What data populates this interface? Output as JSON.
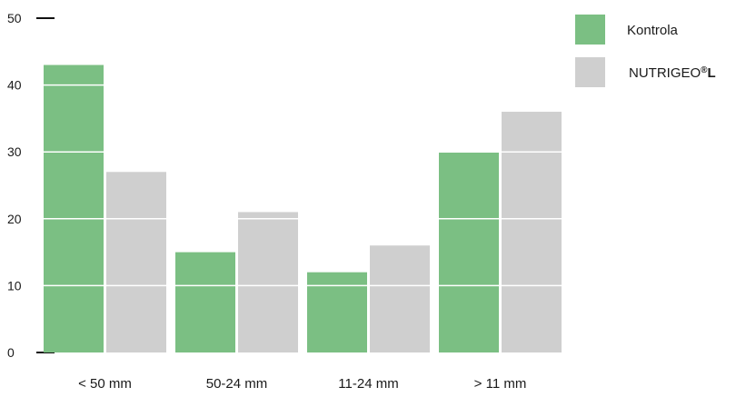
{
  "chart_data": {
    "type": "bar",
    "categories": [
      "< 50 mm",
      "50-24 mm",
      "11-24 mm",
      "> 11 mm"
    ],
    "series": [
      {
        "name": "Kontrola",
        "values": [
          43,
          15,
          12,
          30
        ],
        "color": "#7bbf83"
      },
      {
        "name": "NUTRIGEO®L",
        "values": [
          27,
          21,
          16,
          36
        ],
        "color": "#cfcfcf"
      }
    ],
    "yticks": [
      0,
      10,
      20,
      30,
      40,
      50
    ],
    "ylim": [
      0,
      50
    ],
    "grid": true,
    "grid_color": "#ffffff",
    "legend_position": "top-right",
    "title": "",
    "xlabel": "",
    "ylabel": ""
  }
}
